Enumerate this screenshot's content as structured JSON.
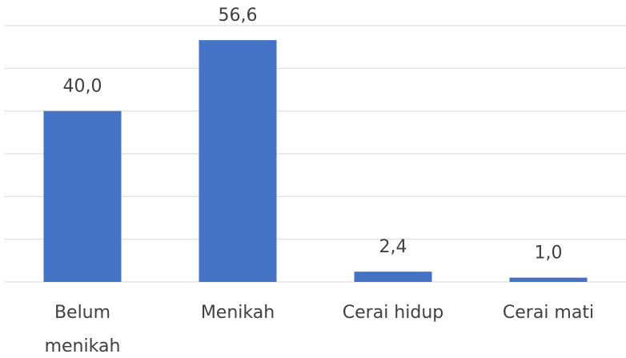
{
  "chart_data": {
    "type": "bar",
    "categories": [
      "Belum menikah",
      "Menikah",
      "Cerai hidup",
      "Cerai mati"
    ],
    "values": [
      40.0,
      56.6,
      2.4,
      1.0
    ],
    "value_labels": [
      "40,0",
      "56,6",
      "2,4",
      "1,0"
    ],
    "color": "#4472c4",
    "ylim": [
      0,
      60
    ],
    "yticks": [
      0,
      10,
      20,
      30,
      40,
      50,
      60
    ],
    "grid": true
  }
}
